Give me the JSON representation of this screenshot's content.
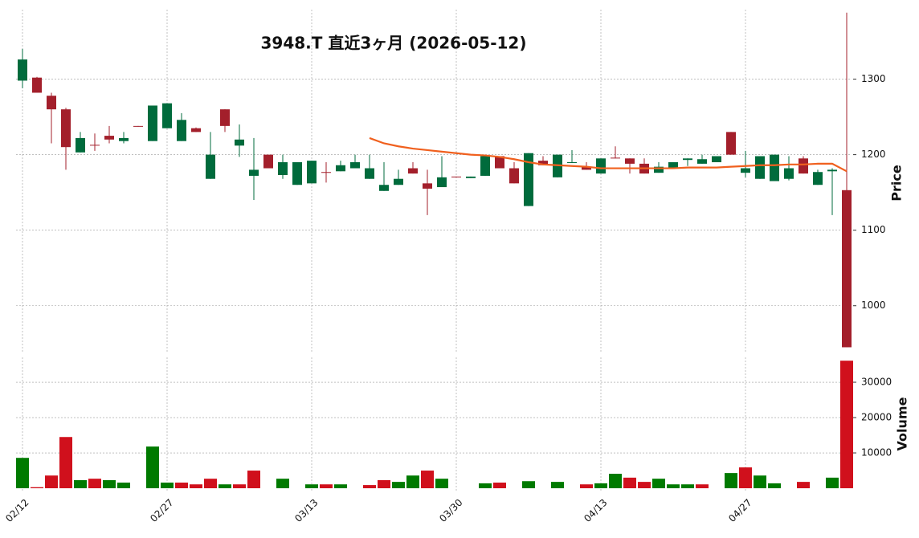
{
  "chart_data": {
    "type": "candlestick",
    "title": "3948.T 直近3ヶ月 (2026-05-12)",
    "categories": [
      "02/12",
      null,
      null,
      null,
      null,
      null,
      null,
      null,
      null,
      null,
      "02/27",
      null,
      null,
      null,
      null,
      null,
      null,
      null,
      null,
      null,
      "03/13",
      null,
      null,
      null,
      null,
      null,
      null,
      null,
      null,
      null,
      "03/30",
      null,
      null,
      null,
      null,
      null,
      null,
      null,
      null,
      null,
      "04/13",
      null,
      null,
      null,
      null,
      null,
      null,
      null,
      null,
      null,
      "04/27",
      null,
      null,
      null,
      null,
      null,
      null,
      null
    ],
    "open": [
      1298,
      1302,
      1278,
      1260,
      1203,
      1213,
      1225,
      1218,
      1238,
      1218,
      1235,
      1218,
      1235,
      1168,
      1260,
      1212,
      1172,
      1200,
      1173,
      1160,
      1162,
      1177,
      1178,
      1182,
      1168,
      1152,
      1160,
      1182,
      1162,
      1157,
      1171,
      1169,
      1172,
      1198,
      1182,
      1132,
      1192,
      1170,
      1189,
      1184,
      1175,
      1196,
      1195,
      1188,
      1176,
      1182,
      1193,
      1188,
      1190,
      1230,
      1176,
      1168,
      1165,
      1168,
      1195,
      1160,
      1178,
      1153
    ],
    "high": [
      1340,
      1303,
      1282,
      1262,
      1230,
      1228,
      1238,
      1230,
      1238,
      1265,
      1268,
      1255,
      1236,
      1230,
      1260,
      1240,
      1222,
      1200,
      1200,
      1190,
      1192,
      1190,
      1192,
      1200,
      1200,
      1190,
      1180,
      1190,
      1180,
      1198,
      1171,
      1171,
      1198,
      1198,
      1190,
      1202,
      1198,
      1200,
      1206,
      1190,
      1195,
      1211,
      1195,
      1195,
      1190,
      1190,
      1195,
      1200,
      1198,
      1230,
      1205,
      1198,
      1200,
      1198,
      1198,
      1180,
      1182,
      1388
    ],
    "low": [
      1288,
      1282,
      1215,
      1180,
      1203,
      1205,
      1215,
      1215,
      1237,
      1218,
      1235,
      1218,
      1230,
      1168,
      1230,
      1197,
      1140,
      1182,
      1168,
      1160,
      1162,
      1163,
      1178,
      1182,
      1168,
      1152,
      1160,
      1175,
      1120,
      1157,
      1170,
      1169,
      1172,
      1182,
      1162,
      1132,
      1186,
      1170,
      1189,
      1180,
      1175,
      1195,
      1175,
      1175,
      1176,
      1182,
      1185,
      1188,
      1190,
      1200,
      1170,
      1168,
      1165,
      1166,
      1175,
      1160,
      1120,
      945
    ],
    "close": [
      1326,
      1282,
      1260,
      1210,
      1222,
      1212,
      1220,
      1222,
      1237,
      1265,
      1268,
      1246,
      1230,
      1200,
      1238,
      1220,
      1180,
      1182,
      1190,
      1190,
      1192,
      1176,
      1186,
      1190,
      1182,
      1160,
      1168,
      1175,
      1155,
      1170,
      1170,
      1171,
      1198,
      1182,
      1162,
      1202,
      1186,
      1200,
      1190,
      1180,
      1195,
      1195,
      1188,
      1175,
      1184,
      1190,
      1195,
      1194,
      1198,
      1200,
      1182,
      1198,
      1200,
      1182,
      1175,
      1177,
      1180,
      945
    ],
    "up_color": "#006b3c",
    "down_color": "#a31f2b",
    "ma": {
      "color": "#f0601e",
      "values": [
        null,
        null,
        null,
        null,
        null,
        null,
        null,
        null,
        null,
        null,
        null,
        null,
        null,
        null,
        null,
        null,
        null,
        null,
        null,
        null,
        null,
        null,
        null,
        null,
        1222,
        1215,
        1211,
        1208,
        1206,
        1204,
        1202,
        1200,
        1199,
        1197,
        1194,
        1190,
        1187,
        1186,
        1185,
        1184,
        1182,
        1182,
        1182,
        1182,
        1182,
        1182,
        1183,
        1183,
        1183,
        1184,
        1185,
        1186,
        1186,
        1187,
        1187,
        1188,
        1188,
        1178
      ]
    },
    "ylabel": "Price",
    "ylim": [
      937,
      1392
    ],
    "yticks": [
      1000,
      1100,
      1200,
      1300
    ],
    "grid": true,
    "volume": {
      "ylabel": "Volume",
      "up_color": "#007a00",
      "down_color": "#d0101c",
      "ylim": [
        -900,
        37050
      ],
      "yticks": [
        10000,
        20000,
        30000
      ],
      "values": [
        8600,
        300,
        3600,
        14500,
        2300,
        2700,
        2300,
        1600,
        0,
        11800,
        1600,
        1600,
        1100,
        2700,
        1100,
        1100,
        5000,
        0,
        2700,
        0,
        1100,
        1100,
        1100,
        0,
        900,
        2300,
        1800,
        3600,
        5000,
        2700,
        0,
        0,
        1400,
        1600,
        0,
        2000,
        0,
        1800,
        0,
        1100,
        1400,
        4100,
        3000,
        1800,
        2700,
        1100,
        1100,
        1100,
        0,
        4300,
        5900,
        3600,
        1400,
        0,
        1800,
        0,
        3000,
        36100
      ]
    }
  }
}
